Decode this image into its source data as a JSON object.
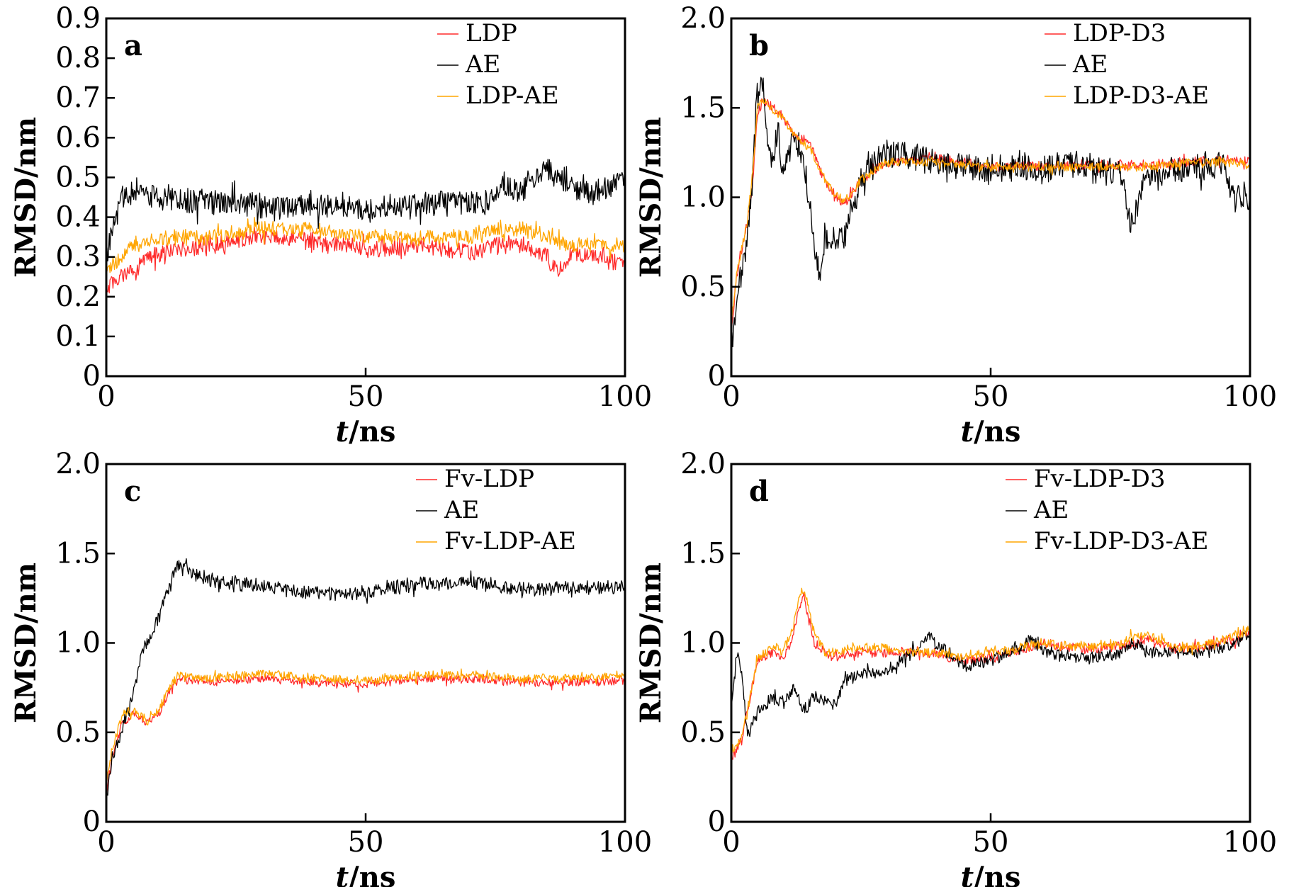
{
  "chart_data": [
    {
      "type": "line",
      "panel_label": "a",
      "xlabel_italic": "t",
      "xlabel_unit": "/ns",
      "ylabel": "RMSD/nm",
      "xlim": [
        0,
        100
      ],
      "ylim": [
        0,
        0.9
      ],
      "xticks": [
        "0",
        "50",
        "100"
      ],
      "yticks": [
        "0",
        "0.1",
        "0.2",
        "0.3",
        "0.4",
        "0.5",
        "0.6",
        "0.7",
        "0.8",
        "0.9"
      ],
      "grid": false,
      "legend_position": "top-right",
      "series": [
        {
          "name": "LDP",
          "color": "#ff2a2a",
          "x": [
            0,
            2,
            5,
            10,
            15,
            20,
            25,
            30,
            35,
            40,
            45,
            50,
            55,
            60,
            65,
            70,
            75,
            80,
            85,
            87,
            90,
            95,
            100
          ],
          "values": [
            0.22,
            0.24,
            0.27,
            0.31,
            0.32,
            0.33,
            0.34,
            0.35,
            0.35,
            0.34,
            0.33,
            0.32,
            0.32,
            0.33,
            0.32,
            0.31,
            0.33,
            0.33,
            0.3,
            0.26,
            0.31,
            0.3,
            0.28
          ],
          "noise": 0.02
        },
        {
          "name": "AE",
          "color": "#000000",
          "x": [
            0,
            1,
            3,
            5,
            10,
            20,
            30,
            40,
            50,
            60,
            70,
            75,
            76,
            80,
            85,
            88,
            90,
            95,
            100
          ],
          "values": [
            0.3,
            0.36,
            0.45,
            0.46,
            0.45,
            0.44,
            0.43,
            0.43,
            0.42,
            0.43,
            0.44,
            0.44,
            0.47,
            0.47,
            0.52,
            0.5,
            0.47,
            0.46,
            0.5
          ],
          "noise": 0.028
        },
        {
          "name": "LDP-AE",
          "color": "#ffa500",
          "x": [
            0,
            2,
            5,
            10,
            20,
            30,
            40,
            50,
            60,
            70,
            75,
            80,
            85,
            90,
            95,
            100
          ],
          "values": [
            0.26,
            0.29,
            0.33,
            0.35,
            0.35,
            0.37,
            0.37,
            0.35,
            0.35,
            0.35,
            0.37,
            0.37,
            0.35,
            0.33,
            0.33,
            0.32
          ],
          "noise": 0.018
        }
      ]
    },
    {
      "type": "line",
      "panel_label": "b",
      "xlabel_italic": "t",
      "xlabel_unit": "/ns",
      "ylabel": "RMSD/nm",
      "xlim": [
        0,
        100
      ],
      "ylim": [
        0,
        2.0
      ],
      "xticks": [
        "0",
        "50",
        "100"
      ],
      "yticks": [
        "0",
        "0.5",
        "1.0",
        "1.5",
        "2.0"
      ],
      "grid": false,
      "legend_position": "top-right",
      "series": [
        {
          "name": "LDP-D3",
          "color": "#ff2a2a",
          "x": [
            0,
            1,
            2,
            3,
            4,
            5,
            6,
            8,
            10,
            12,
            15,
            18,
            20,
            22,
            25,
            30,
            40,
            50,
            60,
            70,
            80,
            90,
            95,
            100
          ],
          "values": [
            0.25,
            0.55,
            0.7,
            0.85,
            1.05,
            1.45,
            1.55,
            1.5,
            1.45,
            1.35,
            1.3,
            1.1,
            1.0,
            0.97,
            1.1,
            1.2,
            1.22,
            1.17,
            1.18,
            1.18,
            1.18,
            1.2,
            1.22,
            1.2
          ],
          "noise": 0.025
        },
        {
          "name": "AE",
          "color": "#000000",
          "x": [
            0,
            1,
            2,
            3,
            4,
            5,
            6,
            7,
            8,
            9,
            10,
            12,
            14,
            16,
            17,
            18,
            20,
            22,
            24,
            26,
            28,
            30,
            35,
            40,
            45,
            50,
            55,
            60,
            65,
            70,
            75,
            77,
            80,
            85,
            90,
            95,
            97,
            100
          ],
          "values": [
            0.15,
            0.4,
            0.6,
            0.75,
            1.05,
            1.6,
            1.65,
            1.3,
            1.2,
            1.4,
            1.1,
            1.35,
            1.2,
            0.75,
            0.55,
            0.8,
            0.75,
            0.8,
            1.0,
            1.15,
            1.2,
            1.25,
            1.22,
            1.2,
            1.18,
            1.15,
            1.18,
            1.15,
            1.2,
            1.16,
            1.12,
            0.85,
            1.1,
            1.15,
            1.18,
            1.18,
            1.0,
            1.0
          ],
          "noise": 0.07
        },
        {
          "name": "LDP-D3-AE",
          "color": "#ffa500",
          "x": [
            0,
            1,
            2,
            3,
            4,
            5,
            6,
            8,
            10,
            12,
            15,
            18,
            20,
            22,
            25,
            30,
            40,
            50,
            60,
            70,
            80,
            90,
            95,
            100
          ],
          "values": [
            0.3,
            0.55,
            0.72,
            0.85,
            1.1,
            1.5,
            1.55,
            1.48,
            1.45,
            1.35,
            1.28,
            1.1,
            1.02,
            0.98,
            1.1,
            1.2,
            1.2,
            1.17,
            1.17,
            1.17,
            1.17,
            1.2,
            1.2,
            1.18
          ],
          "noise": 0.022
        }
      ]
    },
    {
      "type": "line",
      "panel_label": "c",
      "xlabel_italic": "t",
      "xlabel_unit": "/ns",
      "ylabel": "RMSD/nm",
      "xlim": [
        0,
        100
      ],
      "ylim": [
        0,
        2.0
      ],
      "xticks": [
        "0",
        "50",
        "100"
      ],
      "yticks": [
        "0",
        "0.5",
        "1.0",
        "1.5",
        "2.0"
      ],
      "grid": false,
      "legend_position": "top-right",
      "series": [
        {
          "name": "Fv-LDP",
          "color": "#ff2a2a",
          "x": [
            0,
            1,
            3,
            5,
            8,
            10,
            12,
            14,
            20,
            30,
            40,
            50,
            60,
            70,
            80,
            90,
            100
          ],
          "values": [
            0.15,
            0.35,
            0.55,
            0.6,
            0.55,
            0.6,
            0.72,
            0.8,
            0.78,
            0.8,
            0.78,
            0.77,
            0.8,
            0.8,
            0.78,
            0.78,
            0.79
          ],
          "noise": 0.022
        },
        {
          "name": "AE",
          "color": "#000000",
          "x": [
            0,
            1,
            3,
            5,
            7,
            8,
            10,
            12,
            14,
            16,
            20,
            30,
            40,
            50,
            60,
            70,
            80,
            90,
            100
          ],
          "values": [
            0.1,
            0.35,
            0.5,
            0.7,
            0.95,
            1.0,
            1.15,
            1.3,
            1.45,
            1.4,
            1.35,
            1.32,
            1.28,
            1.28,
            1.33,
            1.34,
            1.3,
            1.3,
            1.32
          ],
          "noise": 0.035
        },
        {
          "name": "Fv-LDP-AE",
          "color": "#ffa500",
          "x": [
            0,
            1,
            3,
            5,
            8,
            10,
            12,
            14,
            20,
            30,
            40,
            50,
            60,
            70,
            80,
            90,
            100
          ],
          "values": [
            0.2,
            0.4,
            0.58,
            0.62,
            0.56,
            0.62,
            0.75,
            0.82,
            0.8,
            0.83,
            0.8,
            0.79,
            0.82,
            0.82,
            0.8,
            0.8,
            0.82
          ],
          "noise": 0.022
        }
      ]
    },
    {
      "type": "line",
      "panel_label": "d",
      "xlabel_italic": "t",
      "xlabel_unit": "/ns",
      "ylabel": "RMSD/nm",
      "xlim": [
        0,
        100
      ],
      "ylim": [
        0,
        2.0
      ],
      "xticks": [
        "0",
        "50",
        "100"
      ],
      "yticks": [
        "0",
        "0.5",
        "1.0",
        "1.5",
        "2.0"
      ],
      "grid": false,
      "legend_position": "top-right",
      "series": [
        {
          "name": "Fv-LDP-D3",
          "color": "#ff2a2a",
          "x": [
            0,
            1,
            2,
            3,
            5,
            8,
            10,
            12,
            13,
            14,
            16,
            18,
            20,
            25,
            30,
            35,
            40,
            45,
            50,
            55,
            60,
            65,
            70,
            75,
            80,
            85,
            90,
            95,
            100
          ],
          "values": [
            0.35,
            0.4,
            0.45,
            0.6,
            0.9,
            0.95,
            0.9,
            1.05,
            1.2,
            1.25,
            1.0,
            0.95,
            0.92,
            0.95,
            0.95,
            0.95,
            0.93,
            0.9,
            0.92,
            0.95,
            1.0,
            0.97,
            0.97,
            0.98,
            1.02,
            0.97,
            0.97,
            1.0,
            1.05
          ],
          "noise": 0.025
        },
        {
          "name": "AE",
          "color": "#000000",
          "x": [
            0,
            1,
            2,
            3,
            5,
            8,
            10,
            12,
            14,
            16,
            18,
            20,
            22,
            25,
            30,
            35,
            38,
            40,
            45,
            50,
            55,
            58,
            60,
            65,
            70,
            75,
            78,
            80,
            85,
            90,
            95,
            100
          ],
          "values": [
            0.6,
            0.95,
            0.85,
            0.5,
            0.6,
            0.7,
            0.65,
            0.75,
            0.62,
            0.7,
            0.68,
            0.65,
            0.8,
            0.82,
            0.85,
            0.95,
            1.05,
            0.98,
            0.88,
            0.9,
            0.98,
            1.02,
            0.95,
            0.92,
            0.92,
            0.95,
            1.0,
            0.95,
            0.95,
            0.95,
            0.97,
            1.05
          ],
          "noise": 0.032
        },
        {
          "name": "Fv-LDP-D3-AE",
          "color": "#ffa500",
          "x": [
            0,
            1,
            2,
            3,
            5,
            8,
            10,
            12,
            13,
            14,
            16,
            18,
            20,
            25,
            30,
            35,
            40,
            45,
            50,
            55,
            60,
            65,
            70,
            75,
            80,
            85,
            90,
            95,
            100
          ],
          "values": [
            0.4,
            0.42,
            0.48,
            0.6,
            0.9,
            0.98,
            0.95,
            1.1,
            1.25,
            1.3,
            1.05,
            0.95,
            0.95,
            0.97,
            0.97,
            0.95,
            0.95,
            0.92,
            0.95,
            0.97,
            1.0,
            0.98,
            0.98,
            1.0,
            1.05,
            0.98,
            0.98,
            1.02,
            1.08
          ],
          "noise": 0.025
        }
      ]
    }
  ]
}
